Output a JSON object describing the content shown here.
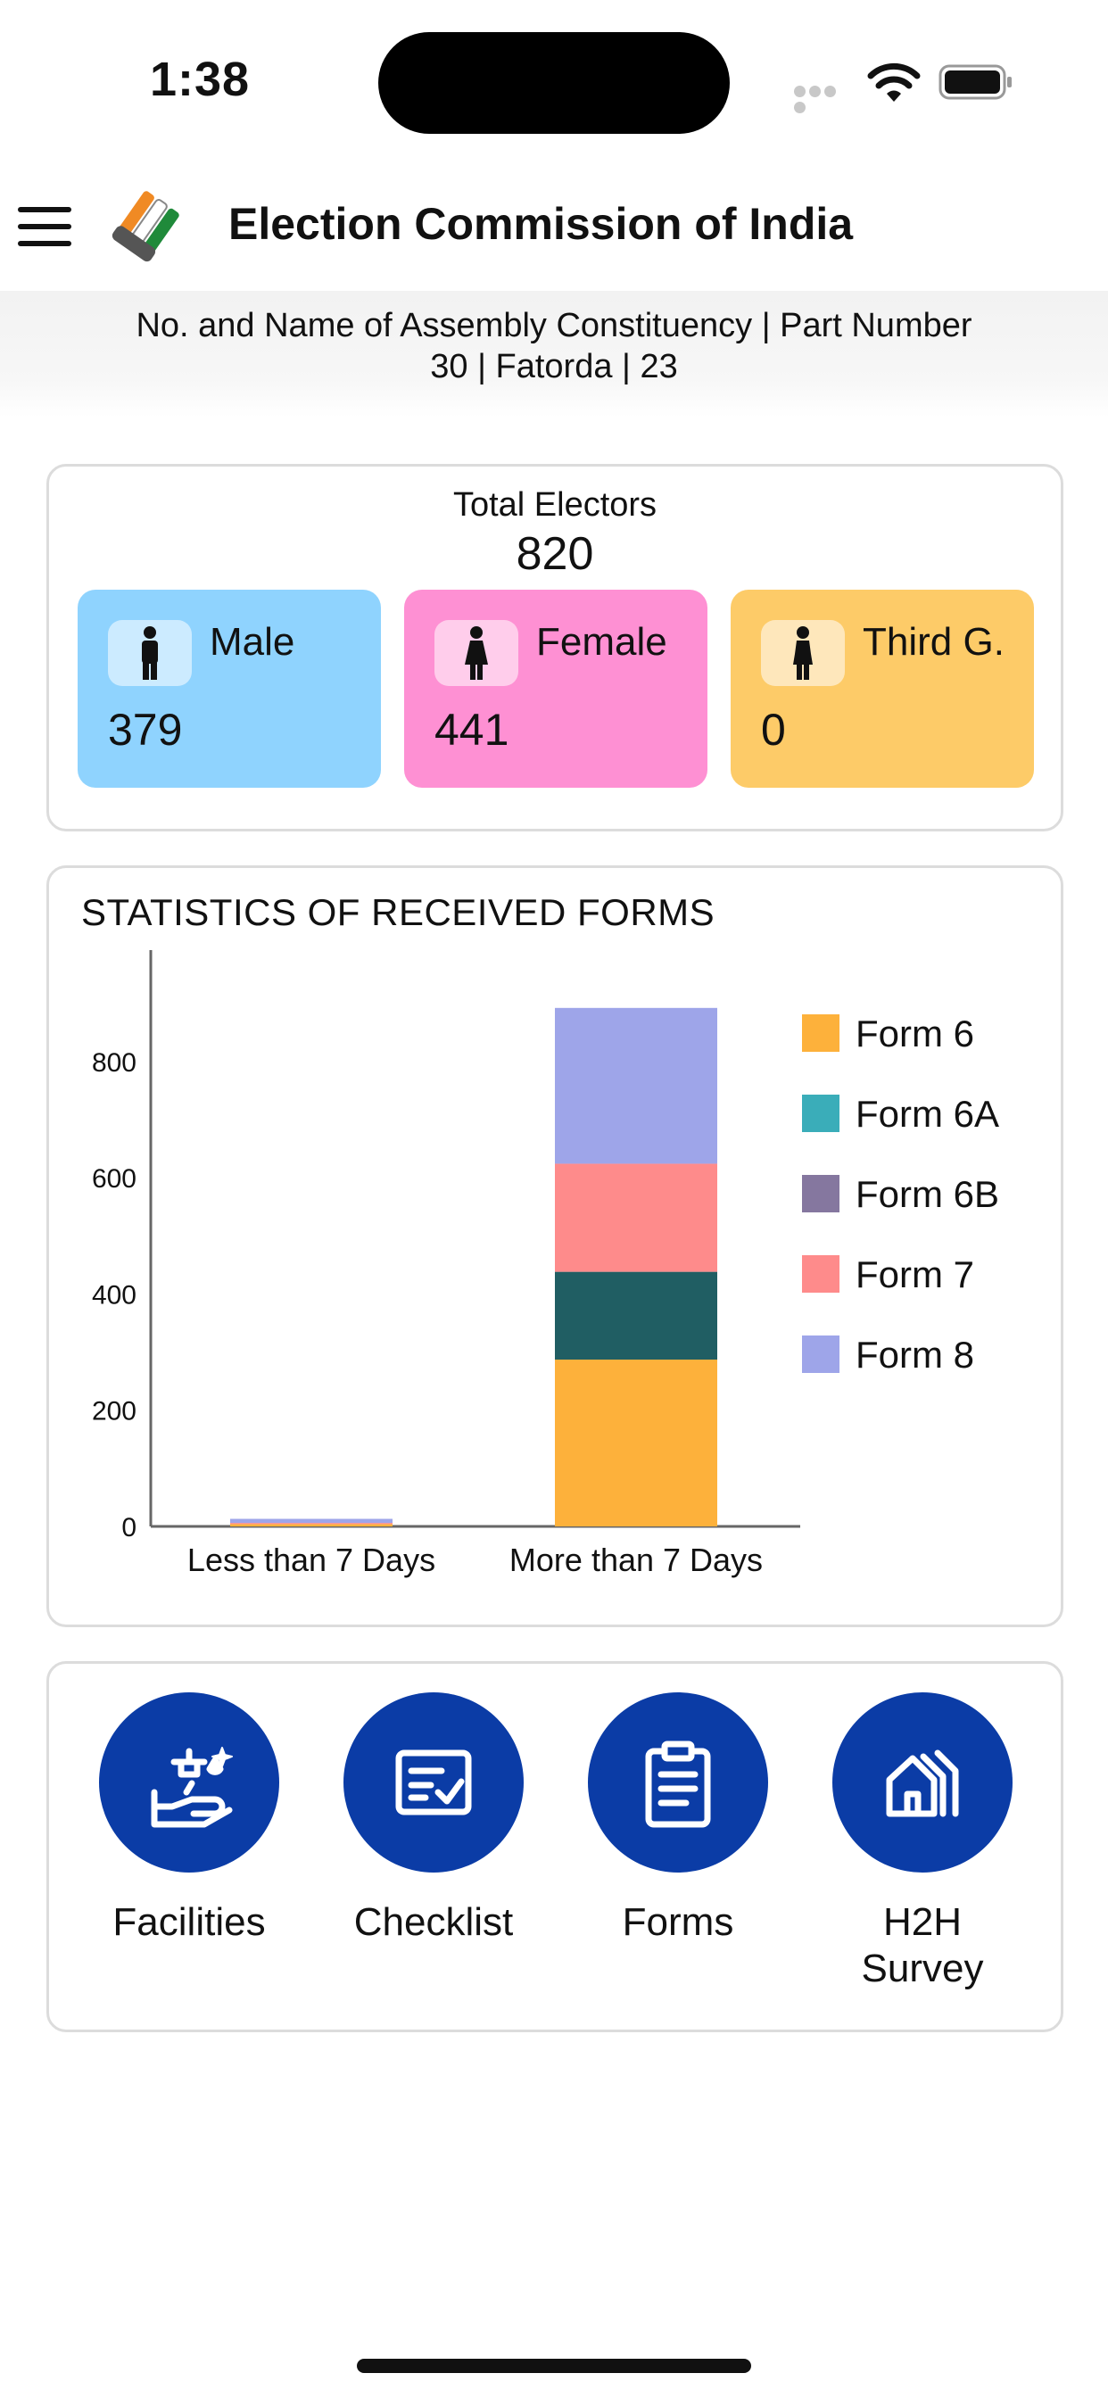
{
  "status": {
    "time": "1:38"
  },
  "header": {
    "title": "Election Commission of India"
  },
  "constituency": {
    "line1": "No. and Name of Assembly Constituency | Part Number",
    "line2": "30 | Fatorda | 23"
  },
  "electors": {
    "label": "Total Electors",
    "total": "820",
    "male": {
      "label": "Male",
      "value": "379"
    },
    "female": {
      "label": "Female",
      "value": "441"
    },
    "third": {
      "label": "Third G.",
      "value": "0"
    }
  },
  "colors": {
    "male": "#8fd3fe",
    "female": "#fe90d3",
    "third": "#fdcb68",
    "primary": "#0b3ca6"
  },
  "chart_data": {
    "type": "bar",
    "stacked": true,
    "title": "STATISTICS OF RECEIVED FORMS",
    "categories": [
      "Less than 7 Days",
      "More than 7 Days"
    ],
    "series": [
      {
        "name": "Form 6",
        "color": "#fdb13b",
        "values": [
          4,
          287
        ]
      },
      {
        "name": "Form 6A",
        "color": "#3aadb9",
        "values": [
          0,
          0
        ]
      },
      {
        "name": "Form 6B",
        "color": "#85779f",
        "values": [
          0,
          0
        ]
      },
      {
        "name": "Form 7",
        "color": "#fe8b8b",
        "values": [
          2,
          186
        ]
      },
      {
        "name": "Form 8",
        "color": "#9ea5e9",
        "values": [
          7,
          268
        ]
      }
    ],
    "extra_series": {
      "name": "",
      "color": "#205e63",
      "values": [
        0,
        151
      ]
    },
    "yticks": [
      0,
      200,
      400,
      600,
      800
    ],
    "ylim": [
      0,
      970
    ],
    "legend": "right"
  },
  "nav": [
    {
      "label": "Facilities",
      "icon": "facilities-icon"
    },
    {
      "label": "Checklist",
      "icon": "checklist-icon"
    },
    {
      "label": "Forms",
      "icon": "forms-icon"
    },
    {
      "label": "H2H\nSurvey",
      "icon": "house-survey-icon"
    }
  ]
}
